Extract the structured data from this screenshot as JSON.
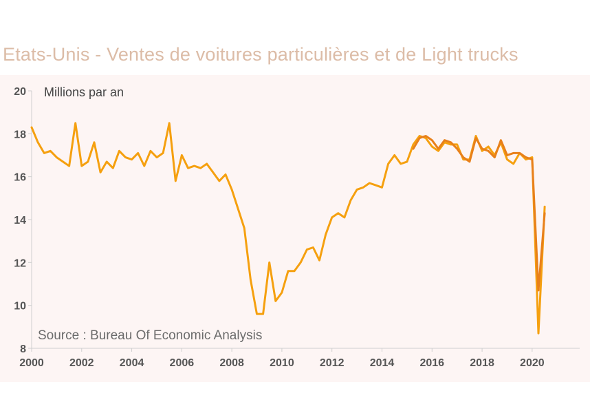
{
  "title": "Etats-Unis - Ventes de voitures particulières et de Light trucks",
  "chart_data": {
    "type": "line",
    "title": "Etats-Unis - Ventes de voitures particulières et de Light trucks",
    "ylabel": "Millions par an",
    "source": "Source : Bureau Of Economic Analysis",
    "xlim": [
      2000,
      2021.9
    ],
    "ylim": [
      8,
      20
    ],
    "xticks": [
      "2000",
      "2002",
      "2004",
      "2006",
      "2008",
      "2010",
      "2012",
      "2014",
      "2016",
      "2018",
      "2020"
    ],
    "yticks": [
      "8",
      "10",
      "12",
      "14",
      "16",
      "18",
      "20"
    ],
    "grid": false,
    "series": [
      {
        "color": "#f5a00f",
        "x": [
          2000.0,
          2000.25,
          2000.5,
          2000.75,
          2001.0,
          2001.25,
          2001.5,
          2001.75,
          2002.0,
          2002.25,
          2002.5,
          2002.75,
          2003.0,
          2003.25,
          2003.5,
          2003.75,
          2004.0,
          2004.25,
          2004.5,
          2004.75,
          2005.0,
          2005.25,
          2005.5,
          2005.75,
          2006.0,
          2006.25,
          2006.5,
          2006.75,
          2007.0,
          2007.25,
          2007.5,
          2007.75,
          2008.0,
          2008.25,
          2008.5,
          2008.75,
          2009.0,
          2009.25,
          2009.5,
          2009.75,
          2010.0,
          2010.25,
          2010.5,
          2010.75,
          2011.0,
          2011.25,
          2011.5,
          2011.75,
          2012.0,
          2012.25,
          2012.5,
          2012.75,
          2013.0,
          2013.25,
          2013.5,
          2013.75,
          2014.0,
          2014.25,
          2014.5,
          2014.75,
          2015.0,
          2015.25,
          2015.5,
          2015.75,
          2016.0,
          2016.25,
          2016.5,
          2016.75,
          2017.0,
          2017.25,
          2017.5,
          2017.75,
          2018.0,
          2018.25,
          2018.5,
          2018.75,
          2019.0,
          2019.25,
          2019.5,
          2019.75,
          2020.0,
          2020.25,
          2020.5
        ],
        "y": [
          18.3,
          17.6,
          17.1,
          17.2,
          16.9,
          16.7,
          16.5,
          18.5,
          16.5,
          16.7,
          17.6,
          16.2,
          16.7,
          16.4,
          17.2,
          16.9,
          16.8,
          17.1,
          16.5,
          17.2,
          16.9,
          17.1,
          18.5,
          15.8,
          17.0,
          16.4,
          16.5,
          16.4,
          16.6,
          16.2,
          15.8,
          16.1,
          15.4,
          14.5,
          13.6,
          11.2,
          9.6,
          9.6,
          12.0,
          10.2,
          10.6,
          11.6,
          11.6,
          12.0,
          12.6,
          12.7,
          12.1,
          13.3,
          14.1,
          14.3,
          14.1,
          14.9,
          15.4,
          15.5,
          15.7,
          15.6,
          15.5,
          16.6,
          17.0,
          16.6,
          16.7,
          17.5,
          17.9,
          17.8,
          17.4,
          17.2,
          17.6,
          17.5,
          17.5,
          16.8,
          16.8,
          17.9,
          17.2,
          17.4,
          17.0,
          17.6,
          16.8,
          16.6,
          17.1,
          16.8,
          16.9,
          8.7,
          14.6
        ]
      },
      {
        "color": "#e8801a",
        "x": [
          2015.25,
          2015.5,
          2015.75,
          2016.0,
          2016.25,
          2016.5,
          2016.75,
          2017.0,
          2017.25,
          2017.5,
          2017.75,
          2018.0,
          2018.25,
          2018.5,
          2018.75,
          2019.0,
          2019.25,
          2019.5,
          2019.75,
          2020.0,
          2020.25,
          2020.5
        ],
        "y": [
          17.3,
          17.8,
          17.9,
          17.7,
          17.3,
          17.7,
          17.6,
          17.3,
          16.9,
          16.7,
          17.8,
          17.3,
          17.2,
          16.9,
          17.7,
          17.0,
          17.1,
          17.1,
          16.9,
          16.8,
          10.7,
          14.3
        ]
      }
    ]
  }
}
